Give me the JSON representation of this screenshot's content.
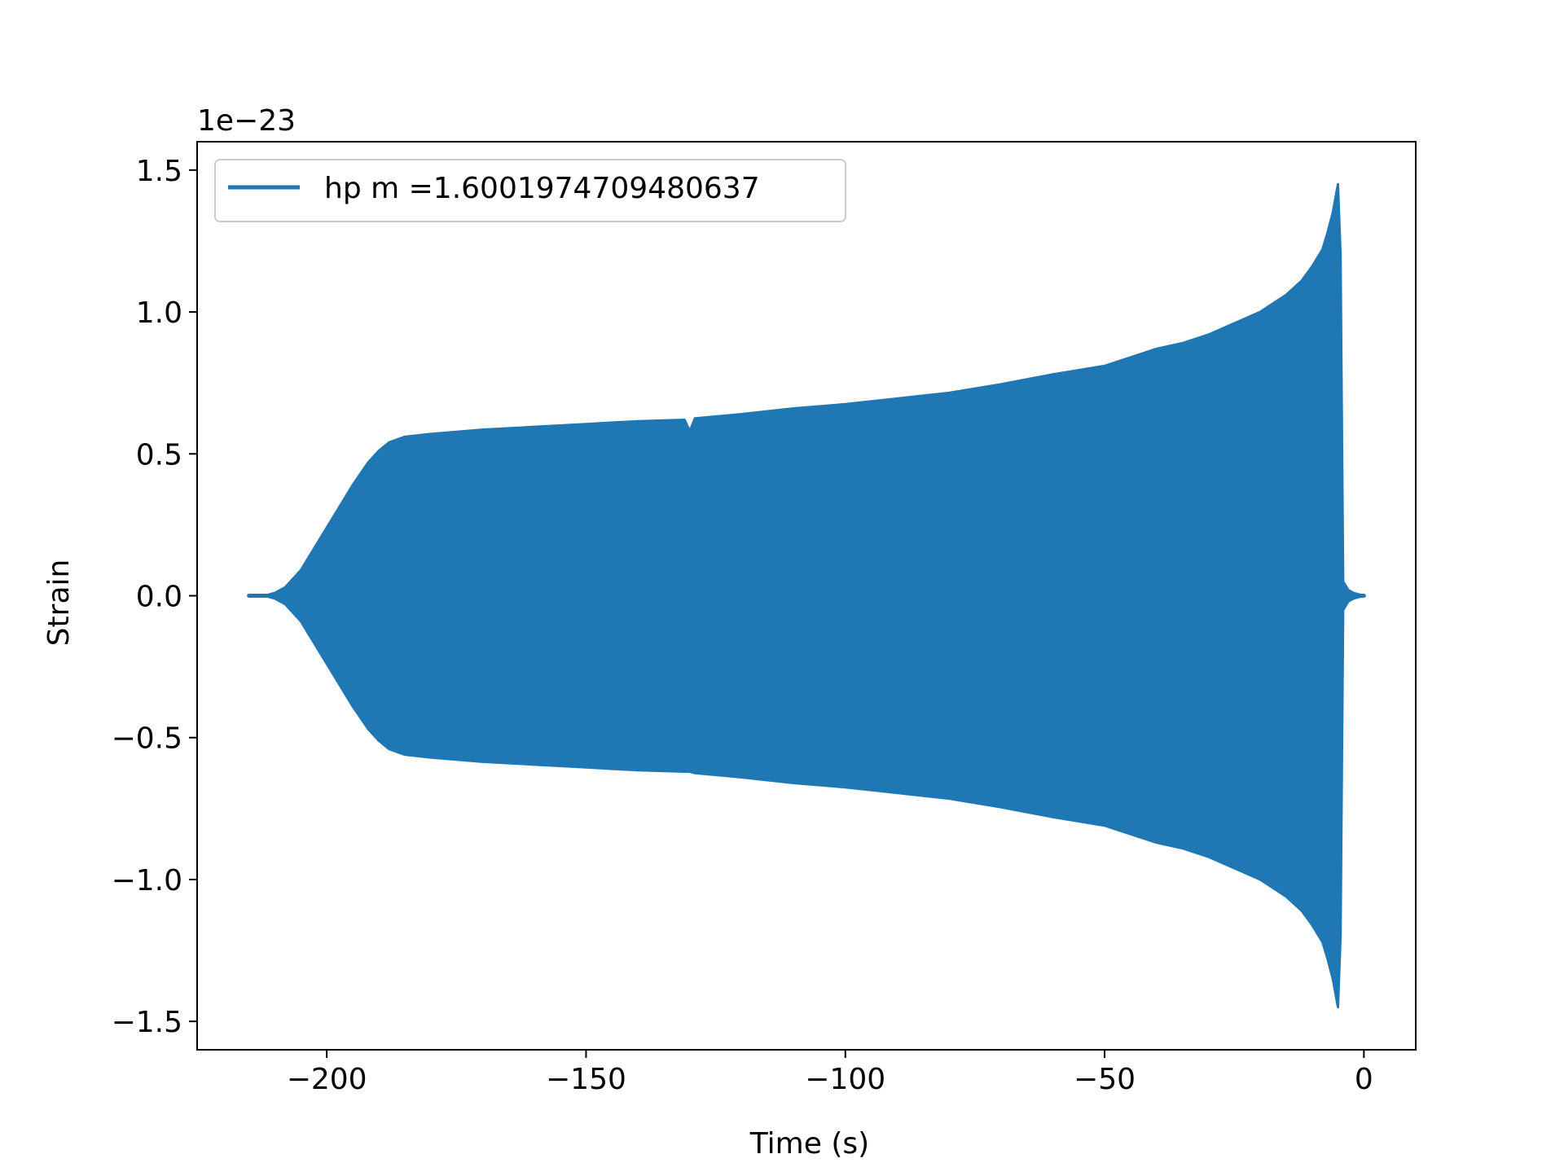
{
  "chart_data": {
    "type": "line",
    "title": "",
    "xlabel": "Time (s)",
    "ylabel": "Strain",
    "y_scale_label": "1e−23",
    "xlim": [
      -225,
      10
    ],
    "ylim": [
      -1.6,
      1.6
    ],
    "x_ticks": [
      -200,
      -150,
      -100,
      -50,
      0
    ],
    "x_tick_labels": [
      "−200",
      "−150",
      "−100",
      "−50",
      "0"
    ],
    "y_ticks": [
      -1.5,
      -1.0,
      -0.5,
      0.0,
      0.5,
      1.0,
      1.5
    ],
    "y_tick_labels": [
      "−1.5",
      "−1.0",
      "−0.5",
      "0.0",
      "0.5",
      "1.0",
      "1.5"
    ],
    "grid": false,
    "legend_position": "upper-left",
    "series": [
      {
        "name": "hp m =1.6001974709480637",
        "color": "#1f77b4",
        "style": "dense oscillating waveform (upper/lower envelope shown)",
        "envelope": {
          "x": [
            -215,
            -212,
            -210,
            -208,
            -205,
            -202,
            -200,
            -198,
            -195,
            -192,
            -190,
            -188,
            -185,
            -180,
            -170,
            -160,
            -150,
            -140,
            -131,
            -130,
            -129,
            -120,
            -110,
            -100,
            -90,
            -80,
            -70,
            -60,
            -50,
            -45,
            -40,
            -35,
            -30,
            -25,
            -20,
            -15,
            -12,
            -10,
            -8,
            -7,
            -6,
            -5,
            -4.5,
            -4.2,
            -4,
            -3,
            -2,
            -1,
            0
          ],
          "upper": [
            0.0,
            0.0,
            0.01,
            0.03,
            0.09,
            0.18,
            0.24,
            0.3,
            0.39,
            0.47,
            0.51,
            0.54,
            0.56,
            0.57,
            0.585,
            0.595,
            0.605,
            0.615,
            0.62,
            0.58,
            0.625,
            0.64,
            0.66,
            0.675,
            0.695,
            0.715,
            0.745,
            0.78,
            0.81,
            0.84,
            0.87,
            0.89,
            0.92,
            0.96,
            1.0,
            1.06,
            1.11,
            1.16,
            1.22,
            1.28,
            1.35,
            1.45,
            1.2,
            0.5,
            0.05,
            0.02,
            0.01,
            0.005,
            0.0
          ],
          "lower": [
            0.0,
            0.0,
            -0.01,
            -0.03,
            -0.09,
            -0.18,
            -0.24,
            -0.3,
            -0.39,
            -0.47,
            -0.51,
            -0.54,
            -0.56,
            -0.57,
            -0.585,
            -0.595,
            -0.605,
            -0.615,
            -0.62,
            -0.62,
            -0.625,
            -0.64,
            -0.66,
            -0.675,
            -0.695,
            -0.715,
            -0.745,
            -0.78,
            -0.81,
            -0.84,
            -0.87,
            -0.89,
            -0.92,
            -0.96,
            -1.0,
            -1.06,
            -1.11,
            -1.16,
            -1.22,
            -1.28,
            -1.35,
            -1.45,
            -1.2,
            -0.5,
            -0.05,
            -0.02,
            -0.01,
            -0.005,
            0.0
          ]
        }
      }
    ]
  }
}
